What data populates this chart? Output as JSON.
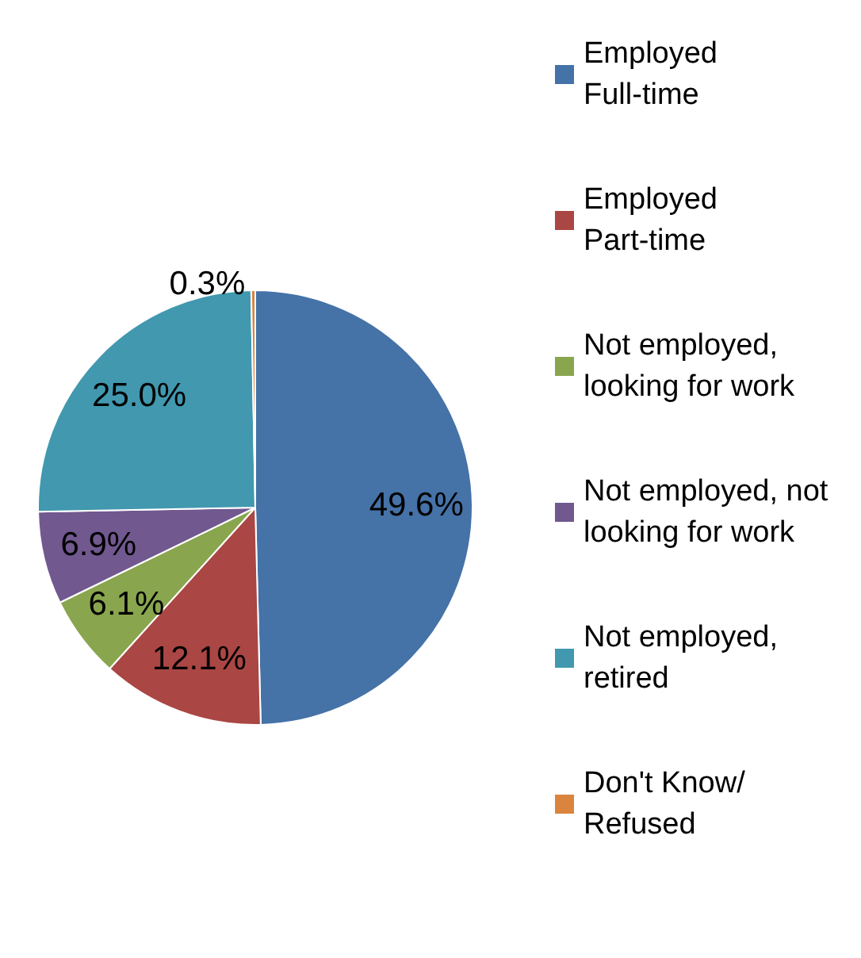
{
  "chart_data": {
    "type": "pie",
    "categories": [
      "Employed Full-time",
      "Employed Part-time",
      "Not employed, looking for work",
      "Not employed, not looking for work",
      "Not employed, retired",
      "Don't Know/Refused"
    ],
    "values": [
      49.6,
      12.1,
      6.1,
      6.9,
      25.0,
      0.3
    ],
    "value_labels": [
      "49.6%",
      "12.1%",
      "6.1%",
      "6.9%",
      "25.0%",
      "0.3%"
    ],
    "colors": [
      "#4572a7",
      "#aa4643",
      "#89a54e",
      "#71588f",
      "#4198af",
      "#db843d"
    ],
    "legend": "right"
  }
}
